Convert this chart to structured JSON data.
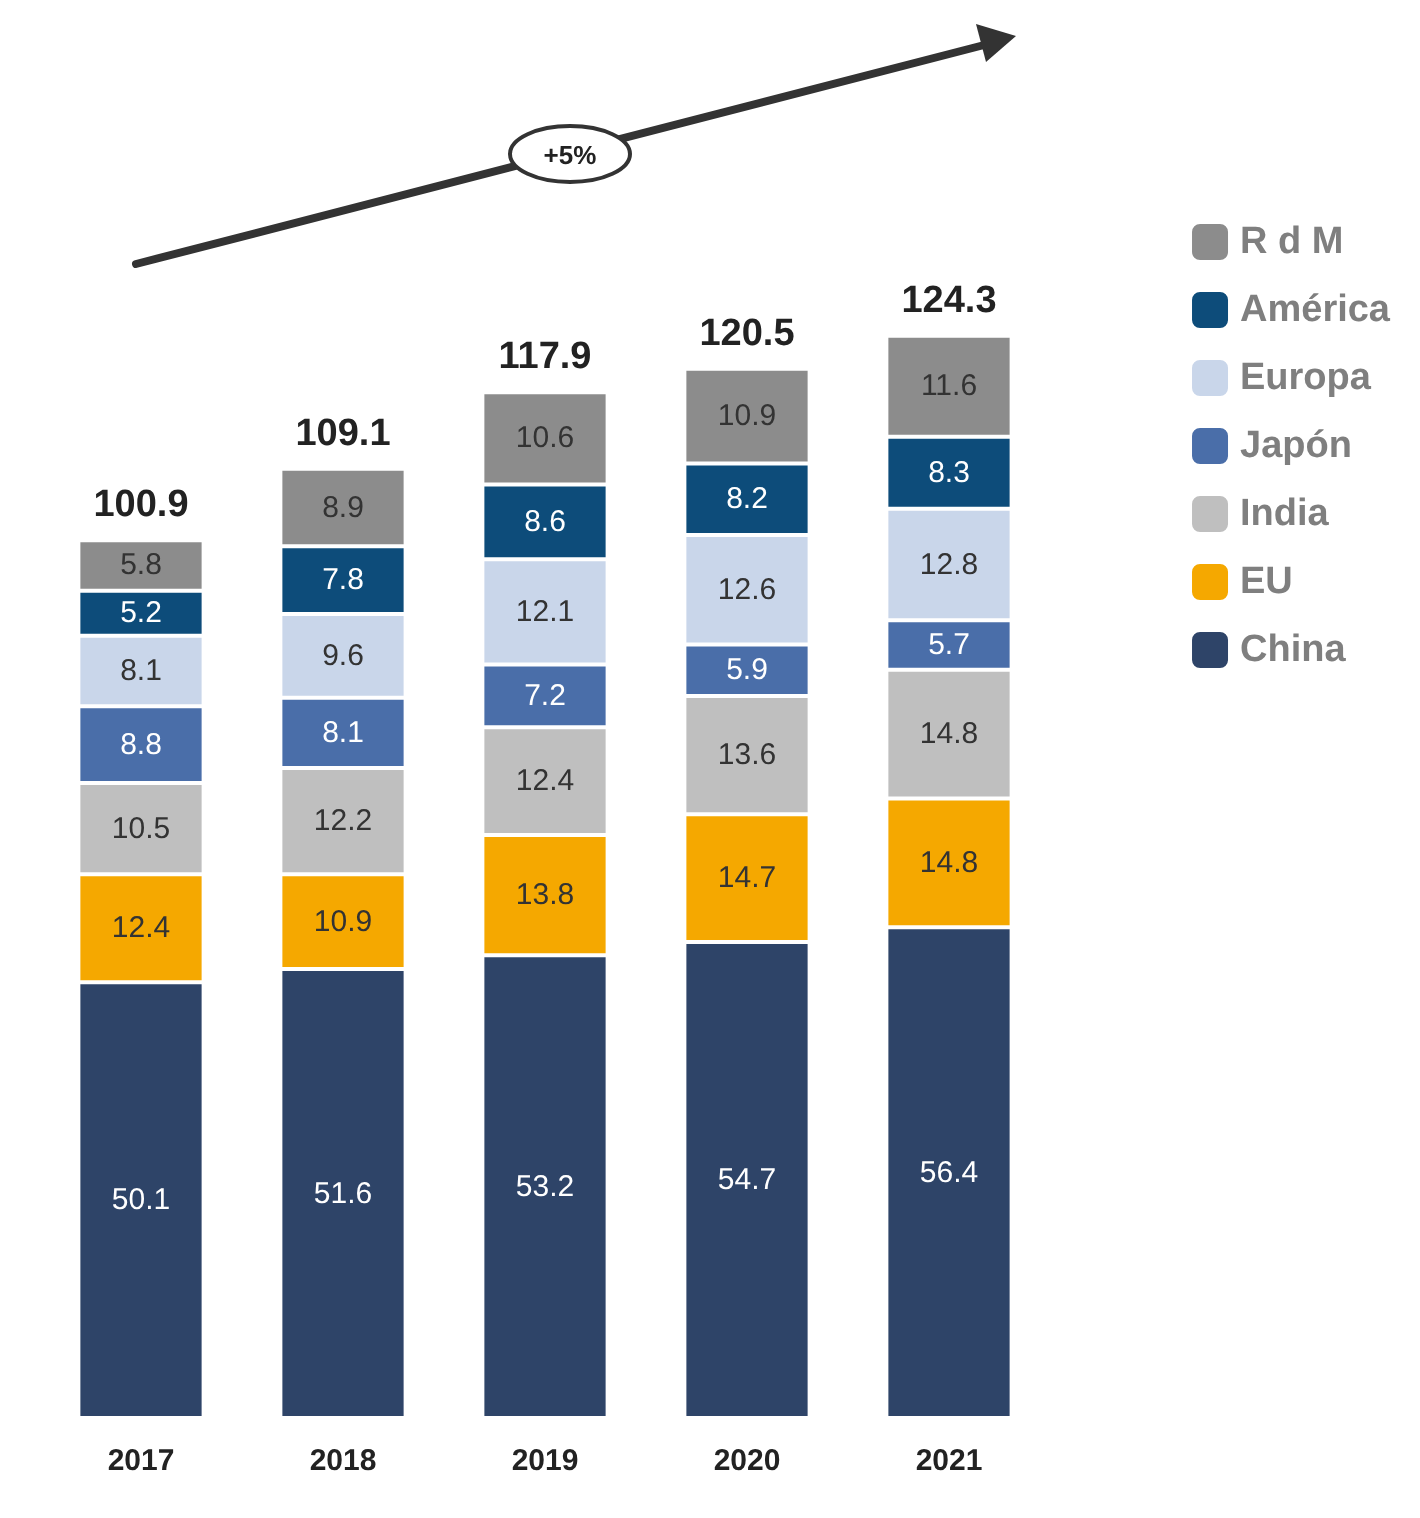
{
  "chart_data": {
    "type": "bar",
    "stacked": true,
    "data_labels": true,
    "legend": "right",
    "categories": [
      "2017",
      "2018",
      "2019",
      "2020",
      "2021"
    ],
    "series": [
      {
        "name": "China",
        "color": "#2e4468",
        "values": [
          50.1,
          51.6,
          53.2,
          54.7,
          56.4
        ]
      },
      {
        "name": "EU",
        "color": "#f5a800",
        "values": [
          12.4,
          10.9,
          13.8,
          14.7,
          14.8
        ]
      },
      {
        "name": "India",
        "color": "#bfbfbf",
        "values": [
          10.5,
          12.2,
          12.4,
          13.6,
          14.8
        ]
      },
      {
        "name": "Japón",
        "color": "#4a6ea9",
        "values": [
          8.8,
          8.1,
          7.2,
          5.9,
          5.7
        ]
      },
      {
        "name": "Europa",
        "color": "#c9d6ea",
        "values": [
          8.1,
          9.6,
          12.1,
          12.6,
          12.8
        ]
      },
      {
        "name": "América",
        "color": "#0d4c7a",
        "values": [
          5.2,
          7.8,
          8.6,
          8.2,
          8.3
        ]
      },
      {
        "name": "R d M",
        "color": "#8c8c8c",
        "values": [
          5.8,
          8.9,
          10.6,
          10.9,
          11.6
        ]
      }
    ],
    "totals": [
      "100.9",
      "109.1",
      "117.9",
      "120.5",
      "124.3"
    ],
    "annotations": [
      "+5%"
    ]
  }
}
